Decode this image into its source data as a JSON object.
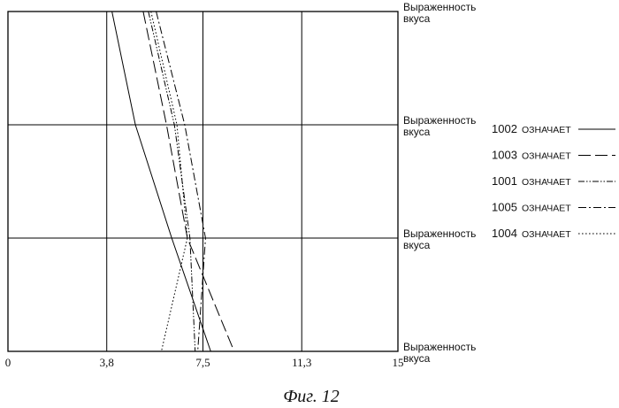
{
  "chart_data": {
    "type": "line",
    "title": "",
    "caption": "Фиг. 12",
    "xlabel": "",
    "ylabel": "",
    "x_ticks": [
      "0",
      "3,8",
      "7,5",
      "11,3",
      "15"
    ],
    "xlim": [
      0,
      15
    ],
    "grid": true,
    "row_labels": [
      [
        "Выраженность",
        "вкуса"
      ],
      [
        "Выраженность",
        "вкуса"
      ],
      [
        "Выраженность",
        "вкуса"
      ],
      [
        "Выраженность",
        "вкуса"
      ]
    ],
    "series": [
      {
        "name": "1002",
        "label": "ОЗНАЧАЕТ",
        "dash": "solid",
        "values": [
          [
            4.0,
            0
          ],
          [
            4.9,
            1
          ],
          [
            6.3,
            2
          ],
          [
            7.8,
            3
          ]
        ]
      },
      {
        "name": "1003",
        "label": "ОЗНАЧАЕТ",
        "dash": "long-dash",
        "values": [
          [
            5.2,
            0
          ],
          [
            6.1,
            1
          ],
          [
            6.9,
            2
          ],
          [
            8.7,
            3
          ]
        ]
      },
      {
        "name": "1001",
        "label": "ОЗНАЧАЕТ",
        "dash": "dash-dot-dot",
        "values": [
          [
            5.4,
            0
          ],
          [
            6.4,
            1
          ],
          [
            7.0,
            2
          ],
          [
            7.2,
            3
          ]
        ]
      },
      {
        "name": "1005",
        "label": "ОЗНАЧАЕТ",
        "dash": "dash-dot",
        "values": [
          [
            5.7,
            0
          ],
          [
            6.8,
            1
          ],
          [
            7.6,
            2
          ],
          [
            7.3,
            3
          ]
        ]
      },
      {
        "name": "1004",
        "label": "ОЗНАЧАЕТ",
        "dash": "dotted",
        "values": [
          [
            5.5,
            0
          ],
          [
            6.5,
            1
          ],
          [
            6.9,
            2
          ],
          [
            5.9,
            3
          ]
        ]
      }
    ]
  }
}
